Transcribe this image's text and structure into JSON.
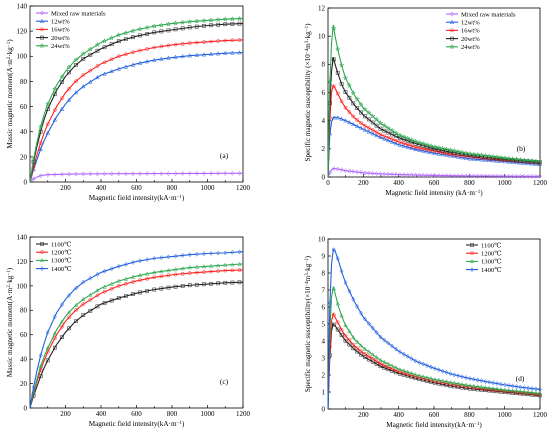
{
  "colors": {
    "purple": "#b266ff",
    "blue": "#1f5fe0",
    "red": "#ff2020",
    "black": "#222222",
    "green": "#2ea84f"
  },
  "chart_data": [
    {
      "type": "line",
      "panel_label": "(a)",
      "xlabel": "Magnetic field intensity(kA·m",
      "xlabel_sup": "−1",
      "xlabel_end": ")",
      "ylabel": "Massic magnetic moment(A·m",
      "ylabel_sup1": "2",
      "ylabel_mid": "·kg",
      "ylabel_sup2": "−1",
      "ylabel_end": ")",
      "xlim": [
        0,
        1200
      ],
      "ylim": [
        0,
        140
      ],
      "xticks": [
        200,
        400,
        600,
        800,
        1000,
        1200
      ],
      "yticks": [
        0,
        20,
        40,
        60,
        80,
        100,
        120,
        140
      ],
      "legend_position": "top-left",
      "grid": false,
      "x": [
        0,
        20,
        40,
        60,
        80,
        100,
        150,
        200,
        250,
        300,
        400,
        500,
        600,
        700,
        800,
        900,
        1000,
        1100,
        1200
      ],
      "series": [
        {
          "name": "Mixed raw materials",
          "color": "purple",
          "marker": "diamond",
          "values": [
            0.8,
            2.5,
            4.0,
            5.0,
            5.5,
            5.8,
            6.0,
            6.2,
            6.3,
            6.4,
            6.5,
            6.6,
            6.6,
            6.7,
            6.7,
            6.8,
            6.8,
            6.9,
            6.9
          ]
        },
        {
          "name": "12wt%",
          "color": "blue",
          "marker": "triangle",
          "values": [
            0,
            10,
            18,
            26,
            33,
            39,
            52,
            62,
            70,
            76,
            85,
            90,
            94,
            97,
            99,
            100.5,
            101.5,
            102.5,
            103
          ]
        },
        {
          "name": "16wt%",
          "color": "red",
          "marker": "circle",
          "values": [
            0,
            12,
            22,
            31,
            39,
            46,
            60,
            71,
            79,
            85,
            94,
            100,
            104,
            107,
            109,
            110.5,
            111.5,
            112.5,
            113
          ]
        },
        {
          "name": "20wt%",
          "color": "black",
          "marker": "square",
          "values": [
            0,
            16,
            29,
            40,
            50,
            58,
            73,
            84,
            92,
            98,
            106,
            112,
            116,
            119,
            121,
            123,
            124.5,
            125.5,
            126
          ]
        },
        {
          "name": "24wt%",
          "color": "green",
          "marker": "star",
          "values": [
            0,
            18,
            32,
            44,
            54,
            62,
            77,
            88,
            96,
            102,
            111,
            117,
            121,
            124,
            126,
            127.5,
            128.5,
            129.5,
            130
          ]
        }
      ]
    },
    {
      "type": "line",
      "panel_label": "(b)",
      "xlabel": "Magnetic field intensity (kA·m",
      "xlabel_sup": "−1",
      "xlabel_end": ")",
      "ylabel": "Specific magnetic susceptibility (×10",
      "ylabel_sup1": "−4",
      "ylabel_mid": "m",
      "ylabel_sup2": "3",
      "ylabel_mid2": "·kg",
      "ylabel_sup3": "−1",
      "ylabel_end": ")",
      "xlim": [
        0,
        1200
      ],
      "ylim": [
        0,
        12
      ],
      "xticks": [
        0,
        200,
        400,
        600,
        800,
        1000,
        1200
      ],
      "yticks": [
        0,
        2,
        4,
        6,
        8,
        10,
        12
      ],
      "legend_position": "top-right",
      "grid": false,
      "x": [
        0,
        10,
        20,
        30,
        40,
        60,
        80,
        100,
        150,
        200,
        300,
        400,
        500,
        600,
        700,
        800,
        900,
        1000,
        1100,
        1200
      ],
      "series": [
        {
          "name": "Mixed raw materials",
          "color": "purple",
          "marker": "diamond",
          "values": [
            0,
            0.3,
            0.5,
            0.6,
            0.6,
            0.55,
            0.5,
            0.45,
            0.38,
            0.3,
            0.22,
            0.17,
            0.14,
            0.11,
            0.09,
            0.08,
            0.07,
            0.06,
            0.05,
            0.05
          ]
        },
        {
          "name": "12wt%",
          "color": "blue",
          "marker": "triangle",
          "values": [
            0,
            3.0,
            3.9,
            4.2,
            4.25,
            4.2,
            4.1,
            4.0,
            3.7,
            3.4,
            2.8,
            2.3,
            1.95,
            1.7,
            1.5,
            1.3,
            1.2,
            1.1,
            1.0,
            0.9
          ]
        },
        {
          "name": "16wt%",
          "color": "red",
          "marker": "circle",
          "values": [
            0,
            4.0,
            6.0,
            6.5,
            6.3,
            5.8,
            5.3,
            4.9,
            4.2,
            3.7,
            3.0,
            2.5,
            2.1,
            1.85,
            1.6,
            1.45,
            1.3,
            1.2,
            1.1,
            1.0
          ]
        },
        {
          "name": "20wt%",
          "color": "black",
          "marker": "square",
          "values": [
            0,
            5.0,
            7.5,
            8.5,
            8.0,
            7.2,
            6.5,
            6.0,
            5.1,
            4.4,
            3.4,
            2.8,
            2.35,
            2.0,
            1.75,
            1.55,
            1.4,
            1.25,
            1.15,
            1.05
          ]
        },
        {
          "name": "24wt%",
          "color": "green",
          "marker": "star",
          "values": [
            0,
            6.5,
            9.5,
            10.8,
            10.0,
            8.8,
            7.8,
            7.0,
            5.8,
            4.9,
            3.8,
            3.0,
            2.5,
            2.15,
            1.9,
            1.65,
            1.5,
            1.35,
            1.2,
            1.1
          ]
        }
      ]
    },
    {
      "type": "line",
      "panel_label": "(c)",
      "xlabel": "Magnetic field intensity(kA·m",
      "xlabel_sup": "−1",
      "xlabel_end": ")",
      "ylabel": "Massic magnetic moment(A·m",
      "ylabel_sup1": "2",
      "ylabel_mid": "·kg",
      "ylabel_sup2": "−1",
      "ylabel_end": ")",
      "xlim": [
        0,
        1200
      ],
      "ylim": [
        0,
        140
      ],
      "xticks": [
        200,
        400,
        600,
        800,
        1000,
        1200
      ],
      "yticks": [
        0,
        20,
        40,
        60,
        80,
        100,
        120,
        140
      ],
      "legend_position": "top-left",
      "grid": false,
      "x": [
        0,
        20,
        40,
        60,
        80,
        100,
        150,
        200,
        250,
        300,
        400,
        500,
        600,
        700,
        800,
        900,
        1000,
        1100,
        1200
      ],
      "series": [
        {
          "name": "1100℃",
          "color": "black",
          "marker": "square",
          "values": [
            0,
            10,
            18,
            26,
            33,
            39,
            52,
            62,
            70,
            76,
            85,
            90,
            94,
            97,
            99,
            100.5,
            101.5,
            102.5,
            103
          ]
        },
        {
          "name": "1200℃",
          "color": "red",
          "marker": "circle",
          "values": [
            0,
            12,
            22,
            31,
            39,
            46,
            60,
            71,
            79,
            85,
            94,
            100,
            104,
            107,
            109,
            110.5,
            111.5,
            112.5,
            113
          ]
        },
        {
          "name": "1300℃",
          "color": "green",
          "marker": "triangle",
          "values": [
            0,
            13,
            24,
            34,
            42,
            49,
            64,
            75,
            83,
            89,
            98,
            104,
            108,
            111,
            113,
            115,
            116,
            117,
            118
          ]
        },
        {
          "name": "1400℃",
          "color": "blue",
          "marker": "diamond",
          "values": [
            0,
            17,
            31,
            43,
            53,
            62,
            78,
            89,
            97,
            103,
            111,
            116,
            120,
            122.5,
            124,
            125.5,
            126.5,
            127,
            128
          ]
        }
      ]
    },
    {
      "type": "line",
      "panel_label": "(d)",
      "xlabel": "Magnetic field intensity(kA·m",
      "xlabel_sup": "−1",
      "xlabel_end": ")",
      "ylabel": "Specific magnetic susceptibility(×10",
      "ylabel_sup1": "−4",
      "ylabel_mid": "m",
      "ylabel_sup2": "3",
      "ylabel_mid2": "·kg",
      "ylabel_sup3": "−1",
      "ylabel_end": ")",
      "xlim": [
        0,
        1200
      ],
      "ylim": [
        0,
        10
      ],
      "xticks": [
        200,
        400,
        600,
        800,
        1000,
        1200
      ],
      "yticks": [
        0,
        1,
        2,
        3,
        4,
        5,
        6,
        7,
        8,
        9,
        10
      ],
      "legend_position": "top-right",
      "grid": false,
      "x": [
        0,
        10,
        20,
        30,
        40,
        60,
        80,
        100,
        150,
        200,
        300,
        400,
        500,
        600,
        700,
        800,
        900,
        1000,
        1100,
        1200
      ],
      "series": [
        {
          "name": "1100℃",
          "color": "black",
          "marker": "square",
          "values": [
            0,
            3.0,
            4.6,
            5.0,
            4.9,
            4.6,
            4.3,
            4.0,
            3.5,
            3.1,
            2.5,
            2.1,
            1.8,
            1.55,
            1.35,
            1.2,
            1.1,
            1.0,
            0.9,
            0.8
          ]
        },
        {
          "name": "1200℃",
          "color": "red",
          "marker": "circle",
          "values": [
            0,
            3.5,
            5.2,
            5.6,
            5.4,
            5.0,
            4.6,
            4.3,
            3.7,
            3.3,
            2.65,
            2.2,
            1.9,
            1.65,
            1.45,
            1.3,
            1.15,
            1.05,
            0.95,
            0.85
          ]
        },
        {
          "name": "1300℃",
          "color": "green",
          "marker": "triangle",
          "values": [
            0,
            4.5,
            6.6,
            7.2,
            6.8,
            6.0,
            5.4,
            4.9,
            4.1,
            3.6,
            2.85,
            2.35,
            2.0,
            1.75,
            1.55,
            1.38,
            1.25,
            1.12,
            1.02,
            0.92
          ]
        },
        {
          "name": "1400℃",
          "color": "blue",
          "marker": "diamond",
          "values": [
            0,
            6.0,
            8.5,
            9.4,
            9.3,
            8.7,
            8.0,
            7.4,
            6.3,
            5.4,
            4.2,
            3.4,
            2.8,
            2.4,
            2.05,
            1.8,
            1.6,
            1.42,
            1.27,
            1.15
          ]
        }
      ]
    }
  ]
}
